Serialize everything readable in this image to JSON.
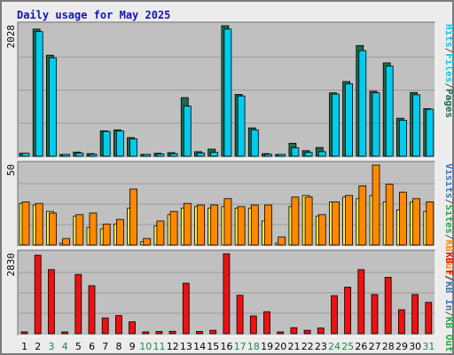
{
  "title": "Daily usage for May 2025",
  "colors": {
    "background": "#ececec",
    "panel": "#c0c0c0",
    "grid": "#9a9a9a",
    "hits": "#1a6b4e",
    "files": "#00ccee",
    "pages": "#00ccee",
    "visits": "#ffee44",
    "sites": "#ff8800",
    "kbytes": "#ee1111",
    "kb_in": "#3377cc",
    "kb_out": "#22aa44",
    "day_weekday": "#000000",
    "day_weekend": "#1a8a4a"
  },
  "chart_data": [
    {
      "type": "bar",
      "panel": "top",
      "max_label": "2028",
      "ylim": [
        0,
        2028
      ],
      "grid": true,
      "categories": [
        "1",
        "2",
        "3",
        "4",
        "5",
        "6",
        "7",
        "8",
        "9",
        "10",
        "11",
        "12",
        "13",
        "14",
        "15",
        "16",
        "17",
        "18",
        "19",
        "20",
        "21",
        "22",
        "23",
        "24",
        "25",
        "26",
        "27",
        "28",
        "29",
        "30",
        "31"
      ],
      "legend_labels": [
        "Hits",
        "/",
        "Files",
        "/",
        "Pages"
      ],
      "series": [
        {
          "name": "Hits",
          "values": [
            45,
            1975,
            1570,
            15,
            65,
            40,
            395,
            410,
            290,
            15,
            45,
            55,
            910,
            70,
            110,
            2028,
            960,
            440,
            40,
            25,
            200,
            85,
            135,
            985,
            1160,
            1720,
            1010,
            1450,
            590,
            990,
            740
          ]
        },
        {
          "name": "Files",
          "values": [
            45,
            1935,
            1530,
            15,
            50,
            30,
            385,
            395,
            270,
            15,
            35,
            40,
            780,
            50,
            60,
            1975,
            935,
            410,
            30,
            15,
            130,
            60,
            70,
            965,
            1125,
            1640,
            985,
            1400,
            560,
            955,
            730
          ]
        }
      ]
    },
    {
      "type": "bar",
      "panel": "middle",
      "max_label": "50",
      "ylim": [
        0,
        50
      ],
      "grid": true,
      "categories": [
        "1",
        "2",
        "3",
        "4",
        "5",
        "6",
        "7",
        "8",
        "9",
        "10",
        "11",
        "12",
        "13",
        "14",
        "15",
        "16",
        "17",
        "18",
        "19",
        "20",
        "21",
        "22",
        "23",
        "24",
        "25",
        "26",
        "27",
        "28",
        "29",
        "30",
        "31"
      ],
      "legend_labels": [
        "Visits",
        "/",
        "Sites",
        "/",
        "KB Out",
        "/",
        "KB In"
      ],
      "series": [
        {
          "name": "Visits",
          "values": [
            26,
            25,
            21,
            1,
            18,
            11,
            10,
            13,
            23,
            2,
            12,
            19,
            23,
            24,
            23,
            24,
            23,
            23,
            15,
            1,
            24,
            31,
            18,
            27,
            30,
            29,
            31,
            27,
            22,
            27,
            21
          ]
        },
        {
          "name": "Sites",
          "values": [
            27,
            26,
            20,
            4,
            19,
            20,
            13,
            16,
            35,
            4,
            15,
            21,
            26,
            25,
            25,
            29,
            24,
            25,
            25,
            5,
            30,
            30,
            19,
            27,
            31,
            37,
            50,
            38,
            33,
            29,
            27
          ]
        }
      ]
    },
    {
      "type": "bar",
      "panel": "bottom",
      "max_label": "2830",
      "ylim": [
        0,
        2830
      ],
      "grid": true,
      "categories": [
        "1",
        "2",
        "3",
        "4",
        "5",
        "6",
        "7",
        "8",
        "9",
        "10",
        "11",
        "12",
        "13",
        "14",
        "15",
        "16",
        "17",
        "18",
        "19",
        "20",
        "21",
        "22",
        "23",
        "24",
        "25",
        "26",
        "27",
        "28",
        "29",
        "30",
        "31"
      ],
      "legend_labels": [
        "KB F",
        "/",
        "KB In",
        "/",
        "KB Out"
      ],
      "series": [
        {
          "name": "KB F",
          "values": [
            65,
            2780,
            2270,
            25,
            2100,
            1700,
            560,
            640,
            420,
            25,
            80,
            85,
            1790,
            80,
            120,
            2830,
            1360,
            630,
            780,
            25,
            215,
            120,
            200,
            1350,
            1650,
            2270,
            1390,
            2000,
            850,
            1390,
            1110
          ]
        }
      ]
    }
  ],
  "weekend_days": [
    "3",
    "4",
    "10",
    "11",
    "17",
    "18",
    "24",
    "25",
    "31"
  ]
}
